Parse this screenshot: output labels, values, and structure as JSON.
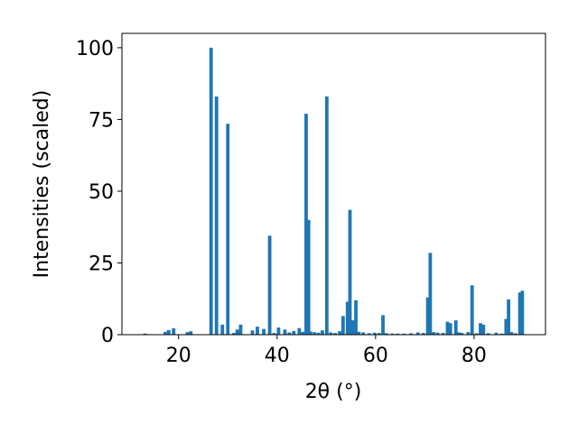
{
  "chart_data": {
    "type": "bar",
    "title": "",
    "xlabel": "2θ (°)",
    "ylabel": "Intensities (scaled)",
    "xlim": [
      8.5,
      94.5
    ],
    "ylim": [
      0,
      105
    ],
    "xticks": [
      20,
      40,
      60,
      80
    ],
    "yticks": [
      0,
      25,
      50,
      75,
      100
    ],
    "grid": false,
    "bar_color": "#1f77b4",
    "bar_width": 0.7,
    "x": [
      13.2,
      17.3,
      18.0,
      19.0,
      21.8,
      22.5,
      26.6,
      27.7,
      28.9,
      30.0,
      31.2,
      31.9,
      32.6,
      35.0,
      36.0,
      37.3,
      38.5,
      39.4,
      40.3,
      41.6,
      42.5,
      43.4,
      44.5,
      45.2,
      45.9,
      46.4,
      46.8,
      47.6,
      48.4,
      49.2,
      50.1,
      50.9,
      51.8,
      52.7,
      53.4,
      54.3,
      54.8,
      55.4,
      56.0,
      56.6,
      57.5,
      58.7,
      59.8,
      60.7,
      61.5,
      62.2,
      63.4,
      64.5,
      65.8,
      67.2,
      68.6,
      69.7,
      70.6,
      71.1,
      71.8,
      72.6,
      73.7,
      74.6,
      75.2,
      76.3,
      76.9,
      77.5,
      78.8,
      79.6,
      80.5,
      81.3,
      81.9,
      82.9,
      84.5,
      85.6,
      86.5,
      87.0,
      87.6,
      88.4,
      89.3,
      89.8
    ],
    "values": [
      0.4,
      1.0,
      1.6,
      2.2,
      0.9,
      1.2,
      100,
      83,
      3.5,
      73.5,
      0.6,
      1.8,
      3.5,
      1.5,
      2.8,
      2.0,
      34.5,
      0.6,
      2.5,
      1.8,
      0.8,
      1.3,
      2.3,
      1.0,
      77,
      40,
      1.1,
      0.9,
      0.7,
      1.5,
      83,
      0.8,
      0.6,
      1.2,
      6.5,
      11.5,
      43.5,
      5.0,
      12.0,
      1.0,
      0.8,
      0.5,
      0.7,
      0.6,
      6.8,
      0.5,
      0.4,
      0.4,
      0.4,
      0.5,
      0.8,
      0.6,
      13.0,
      28.5,
      0.9,
      0.7,
      0.6,
      4.5,
      4.0,
      5.0,
      0.8,
      0.6,
      0.9,
      17.2,
      0.5,
      4.0,
      3.5,
      0.5,
      0.7,
      0.4,
      5.5,
      12.3,
      0.9,
      0.5,
      14.7,
      15.3
    ]
  }
}
